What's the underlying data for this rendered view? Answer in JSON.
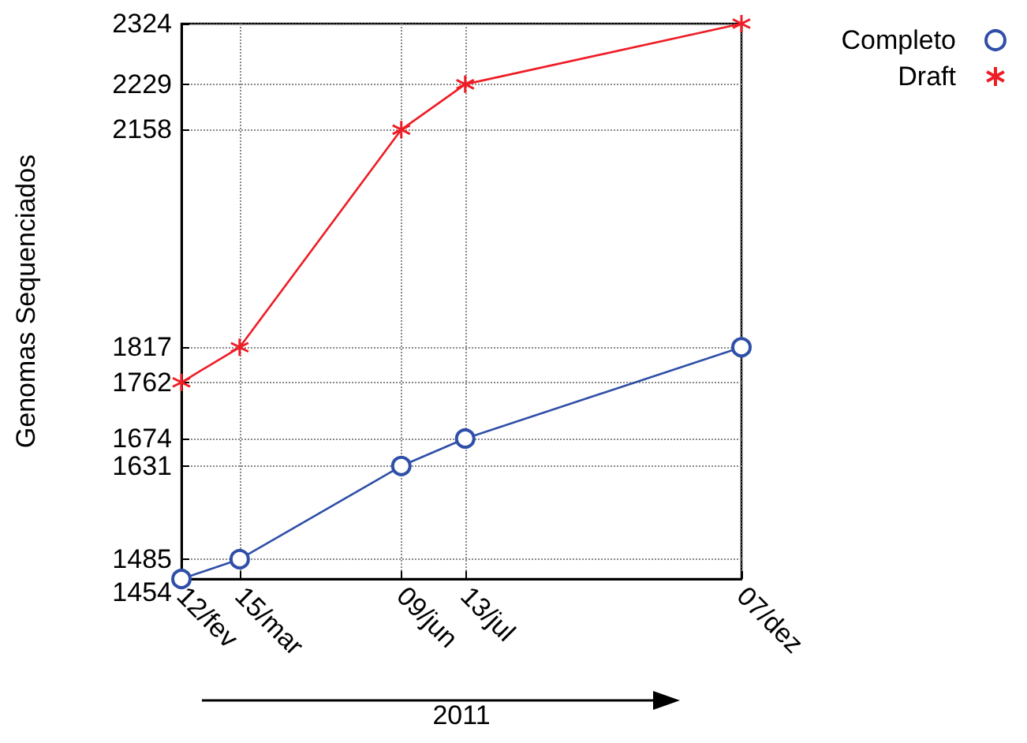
{
  "chart_data": {
    "type": "line",
    "xlabel": "2011",
    "ylabel": "Genomas Sequenciados",
    "x": [
      "2011-02-12",
      "2011-03-15",
      "2011-06-09",
      "2011-07-13",
      "2011-12-07"
    ],
    "xlim": [
      "2011-02-12",
      "2011-12-07"
    ],
    "xticks": [
      {
        "value": "2011-02-12",
        "label": "12/fev"
      },
      {
        "value": "2011-03-15",
        "label": "15/mar"
      },
      {
        "value": "2011-06-09",
        "label": "09/jun"
      },
      {
        "value": "2011-07-13",
        "label": "13/jul"
      },
      {
        "value": "2011-12-07",
        "label": "07/dez"
      }
    ],
    "ylim": [
      1454,
      2324
    ],
    "yticks": [
      1454,
      1485,
      1631,
      1674,
      1762,
      1817,
      2158,
      2229,
      2324
    ],
    "series": [
      {
        "name": "Completo",
        "color": "#2f4fa8",
        "marker": "circle",
        "values": [
          1454,
          1485,
          1631,
          1674,
          1817
        ]
      },
      {
        "name": "Draft",
        "color": "#ee1c25",
        "marker": "cross",
        "values": [
          1762,
          1817,
          2158,
          2229,
          2324
        ]
      }
    ],
    "grid": true,
    "legend": "top right",
    "line_style": "solid"
  }
}
